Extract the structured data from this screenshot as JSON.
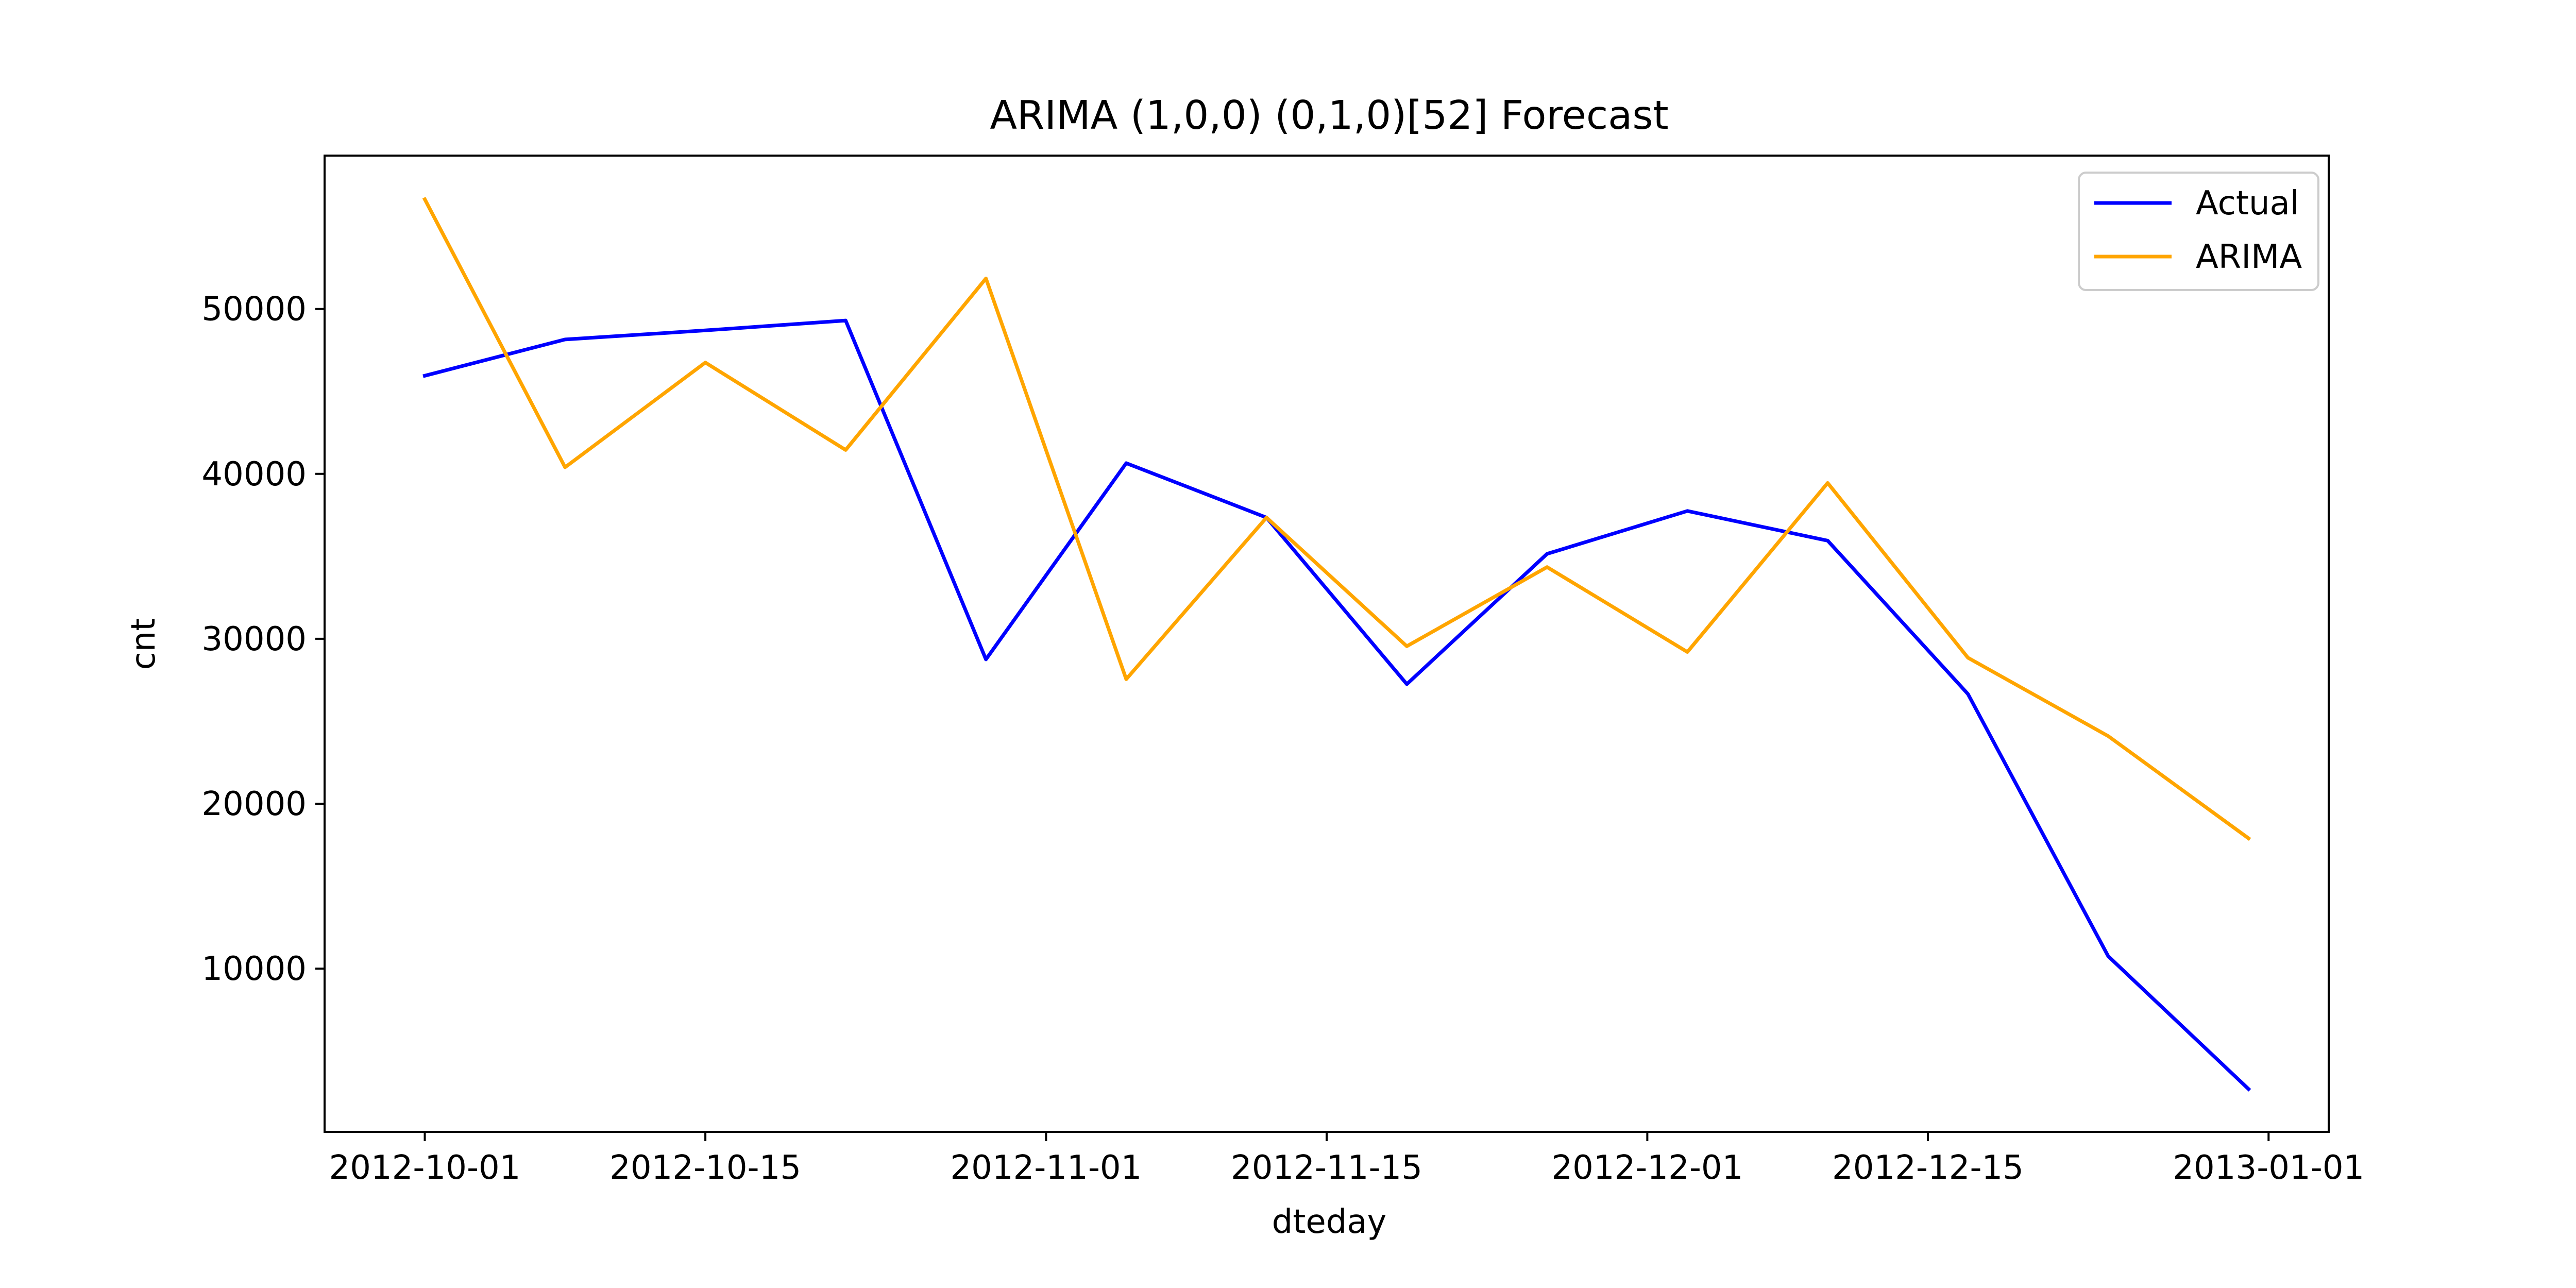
{
  "chart_data": {
    "type": "line",
    "title": "ARIMA (1,0,0) (0,1,0)[52] Forecast",
    "xlabel": "dteday",
    "ylabel": "cnt",
    "x": [
      "2012-10-01",
      "2012-10-08",
      "2012-10-15",
      "2012-10-22",
      "2012-10-29",
      "2012-11-05",
      "2012-11-12",
      "2012-11-19",
      "2012-11-26",
      "2012-12-03",
      "2012-12-10",
      "2012-12-17",
      "2012-12-24",
      "2012-12-31"
    ],
    "xlim": [
      "2012-09-26",
      "2013-01-04"
    ],
    "ylim": [
      100,
      59300
    ],
    "x_ticks": [
      "2012-10-01",
      "2012-10-15",
      "2012-11-01",
      "2012-11-15",
      "2012-12-01",
      "2012-12-15",
      "2013-01-01"
    ],
    "y_ticks": [
      10000,
      20000,
      30000,
      40000,
      50000
    ],
    "grid": false,
    "legend_position": "top-right",
    "series": [
      {
        "name": "Actual",
        "color": "#0000ff",
        "values": [
          45950,
          48150,
          48700,
          49300,
          28750,
          40650,
          37350,
          27250,
          35150,
          37750,
          35950,
          26650,
          10750,
          2700
        ]
      },
      {
        "name": "ARIMA",
        "color": "#ffa500",
        "values": [
          56650,
          40400,
          46750,
          41450,
          51850,
          27550,
          37350,
          29550,
          34350,
          29200,
          39450,
          28850,
          24100,
          17900
        ]
      }
    ]
  }
}
